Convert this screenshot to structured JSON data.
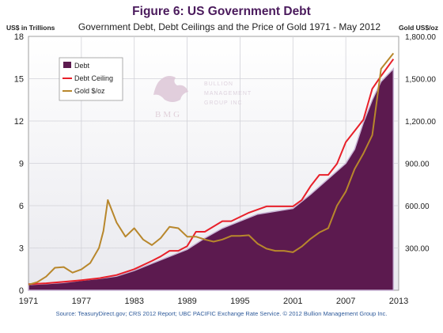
{
  "chart_data": {
    "type": "line",
    "title": "Figure 6:  US Government Debt",
    "subtitle": "Government Debt, Debt Ceilings and the Price of Gold 1971 - May 2012",
    "ylabel": "US$ in Trillions",
    "y2label": "Gold US$/oz",
    "xlim": [
      1971,
      2013
    ],
    "ylim": [
      0,
      18
    ],
    "y2lim": [
      0,
      1800
    ],
    "x_ticks": [
      "1971",
      "1977",
      "1983",
      "1989",
      "1995",
      "2001",
      "2007",
      "2013"
    ],
    "y_ticks": [
      "0",
      "3",
      "6",
      "9",
      "12",
      "15",
      "18"
    ],
    "y2_ticks": [
      "",
      "300.00",
      "600.00",
      "900.00",
      "1,200.00",
      "1,500.00",
      "1,800.00"
    ],
    "grid": true,
    "legend_position": "top-left",
    "series": [
      {
        "name": "Debt",
        "kind": "area",
        "axis": "left",
        "color": "#5c1a4f",
        "x": [
          1971,
          1973,
          1975,
          1977,
          1979,
          1981,
          1983,
          1985,
          1987,
          1989,
          1991,
          1993,
          1995,
          1997,
          1999,
          2001,
          2003,
          2005,
          2007,
          2008,
          2009,
          2010,
          2011,
          2012.4
        ],
        "y": [
          0.4,
          0.46,
          0.55,
          0.7,
          0.83,
          1.0,
          1.4,
          1.9,
          2.4,
          2.9,
          3.7,
          4.4,
          4.9,
          5.4,
          5.6,
          5.8,
          6.8,
          7.9,
          9.0,
          10.0,
          11.9,
          13.5,
          14.8,
          15.7
        ]
      },
      {
        "name": "Debt Ceiling",
        "kind": "line",
        "axis": "left",
        "color": "#e8202a",
        "x": [
          1971,
          1973,
          1975,
          1977,
          1979,
          1981,
          1983,
          1985,
          1986,
          1987,
          1988,
          1989,
          1990,
          1991,
          1993,
          1994,
          1996,
          1998,
          2001,
          2002,
          2003,
          2004,
          2005,
          2006,
          2007,
          2008,
          2009,
          2010,
          2011,
          2012.4
        ],
        "y": [
          0.43,
          0.5,
          0.6,
          0.72,
          0.85,
          1.08,
          1.5,
          2.08,
          2.4,
          2.8,
          2.8,
          3.13,
          4.15,
          4.15,
          4.9,
          4.9,
          5.5,
          5.95,
          5.95,
          6.4,
          7.38,
          8.18,
          8.18,
          8.97,
          10.5,
          11.3,
          12.1,
          14.29,
          15.19,
          16.39
        ]
      },
      {
        "name": "Gold $/oz",
        "kind": "line",
        "axis": "right",
        "color": "#b8872c",
        "x": [
          1971,
          1972,
          1973,
          1974,
          1975,
          1976,
          1977,
          1978,
          1979,
          1979.5,
          1980,
          1981,
          1982,
          1983,
          1984,
          1985,
          1986,
          1987,
          1988,
          1989,
          1990,
          1991,
          1992,
          1993,
          1994,
          1995,
          1996,
          1997,
          1998,
          1999,
          2000,
          2001,
          2002,
          2003,
          2004,
          2005,
          2006,
          2007,
          2008,
          2009,
          2010,
          2011,
          2012.4
        ],
        "y": [
          40,
          58,
          97,
          160,
          165,
          125,
          148,
          193,
          300,
          420,
          640,
          480,
          380,
          440,
          360,
          320,
          370,
          450,
          440,
          380,
          380,
          360,
          345,
          360,
          385,
          385,
          390,
          330,
          295,
          280,
          280,
          270,
          310,
          365,
          410,
          440,
          600,
          700,
          860,
          970,
          1100,
          1570,
          1680
        ]
      }
    ]
  },
  "watermark": {
    "line1": "BULLION",
    "line2": "MANAGEMENT",
    "line3": "GROUP INC",
    "mark": "BMG"
  },
  "source": "Source: TeasuryDirect.gov; CRS 2012 Report; UBC PACIFIC Exchange Rate Service. © 2012 Bullion Management Group Inc."
}
